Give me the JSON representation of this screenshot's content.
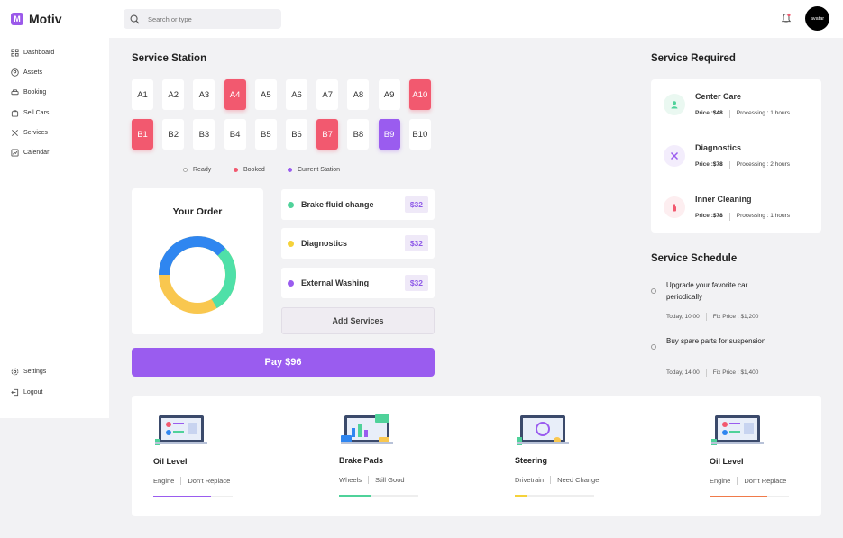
{
  "app": {
    "name": "Motiv",
    "logo_glyph": "M"
  },
  "search": {
    "placeholder": "Search or type"
  },
  "avatar": {
    "label": "avatar"
  },
  "sidebar": {
    "items": [
      {
        "label": "Dashboard",
        "icon": "grid-icon"
      },
      {
        "label": "Assets",
        "icon": "user-circle-icon"
      },
      {
        "label": "Booking",
        "icon": "car-icon"
      },
      {
        "label": "Sell Cars",
        "icon": "bag-icon"
      },
      {
        "label": "Services",
        "icon": "tools-icon"
      },
      {
        "label": "Calendar",
        "icon": "chart-icon"
      }
    ],
    "bottom_items": [
      {
        "label": "Settings",
        "icon": "gear-icon"
      },
      {
        "label": "Logout",
        "icon": "logout-icon"
      }
    ]
  },
  "station": {
    "title": "Service Station",
    "rows": [
      [
        {
          "id": "A1",
          "state": "ready"
        },
        {
          "id": "A2",
          "state": "ready"
        },
        {
          "id": "A3",
          "state": "ready"
        },
        {
          "id": "A4",
          "state": "booked"
        },
        {
          "id": "A5",
          "state": "ready"
        },
        {
          "id": "A6",
          "state": "ready"
        },
        {
          "id": "A7",
          "state": "ready"
        },
        {
          "id": "A8",
          "state": "ready"
        },
        {
          "id": "A9",
          "state": "ready"
        },
        {
          "id": "A10",
          "state": "booked"
        }
      ],
      [
        {
          "id": "B1",
          "state": "booked"
        },
        {
          "id": "B2",
          "state": "ready"
        },
        {
          "id": "B3",
          "state": "ready"
        },
        {
          "id": "B4",
          "state": "ready"
        },
        {
          "id": "B5",
          "state": "ready"
        },
        {
          "id": "B6",
          "state": "ready"
        },
        {
          "id": "B7",
          "state": "booked"
        },
        {
          "id": "B8",
          "state": "ready"
        },
        {
          "id": "B9",
          "state": "current"
        },
        {
          "id": "B10",
          "state": "ready"
        }
      ]
    ],
    "legend": [
      {
        "label": "Ready",
        "color": "#ffffff"
      },
      {
        "label": "Booked",
        "color": "#f2596f"
      },
      {
        "label": "Current Station",
        "color": "#9a5cef"
      }
    ]
  },
  "order": {
    "title": "Your Order",
    "donut_colors": [
      "#2f86f0",
      "#4fe0a8",
      "#f9c74f"
    ],
    "services": [
      {
        "name": "Brake fluid change",
        "price": "$32",
        "color": "#4fd29a"
      },
      {
        "name": "Diagnostics",
        "price": "$32",
        "color": "#f5d23a"
      },
      {
        "name": "External Washing",
        "price": "$32",
        "color": "#9a5cef"
      }
    ],
    "add_label": "Add Services",
    "pay_label": "Pay $96"
  },
  "required": {
    "title": "Service Required",
    "items": [
      {
        "name": "Center Care",
        "price_label": "Price :",
        "price": "$48",
        "processing": "Processing : 1 hours",
        "icon": "person-icon",
        "color": "#4fd29a",
        "bg": "#eaf8f1"
      },
      {
        "name": "Diagnostics",
        "price_label": "Price :",
        "price": "$78",
        "processing": "Processing : 2 hours",
        "icon": "tools-icon",
        "color": "#9a5cef",
        "bg": "#f3edfc"
      },
      {
        "name": "Inner Cleaning",
        "price_label": "Price :",
        "price": "$78",
        "processing": "Processing : 1 hours",
        "icon": "spray-icon",
        "color": "#f2596f",
        "bg": "#fdeef0"
      }
    ]
  },
  "schedule": {
    "title": "Service Schedule",
    "items": [
      {
        "title": "Upgrade your favorite car periodically",
        "time": "Today, 10.00",
        "price": "Fix Price : $1,200"
      },
      {
        "title": "Buy spare parts for suspension",
        "time": "Today, 14.00",
        "price": "Fix Price : $1,400"
      }
    ]
  },
  "stats": [
    {
      "name": "Oil Level",
      "category": "Engine",
      "status": "Don't Replace",
      "bar_color": "#9a5cef",
      "level": 0.73
    },
    {
      "name": "Brake Pads",
      "category": "Wheels",
      "status": "Still Good",
      "bar_color": "#4fd29a",
      "level": 0.41
    },
    {
      "name": "Steering",
      "category": "Drivetrain",
      "status": "Need Change",
      "bar_color": "#f5d23a",
      "level": 0.16
    },
    {
      "name": "Oil Level",
      "category": "Engine",
      "status": "Don't Replace",
      "bar_color": "#f07a4a",
      "level": 0.73
    }
  ]
}
